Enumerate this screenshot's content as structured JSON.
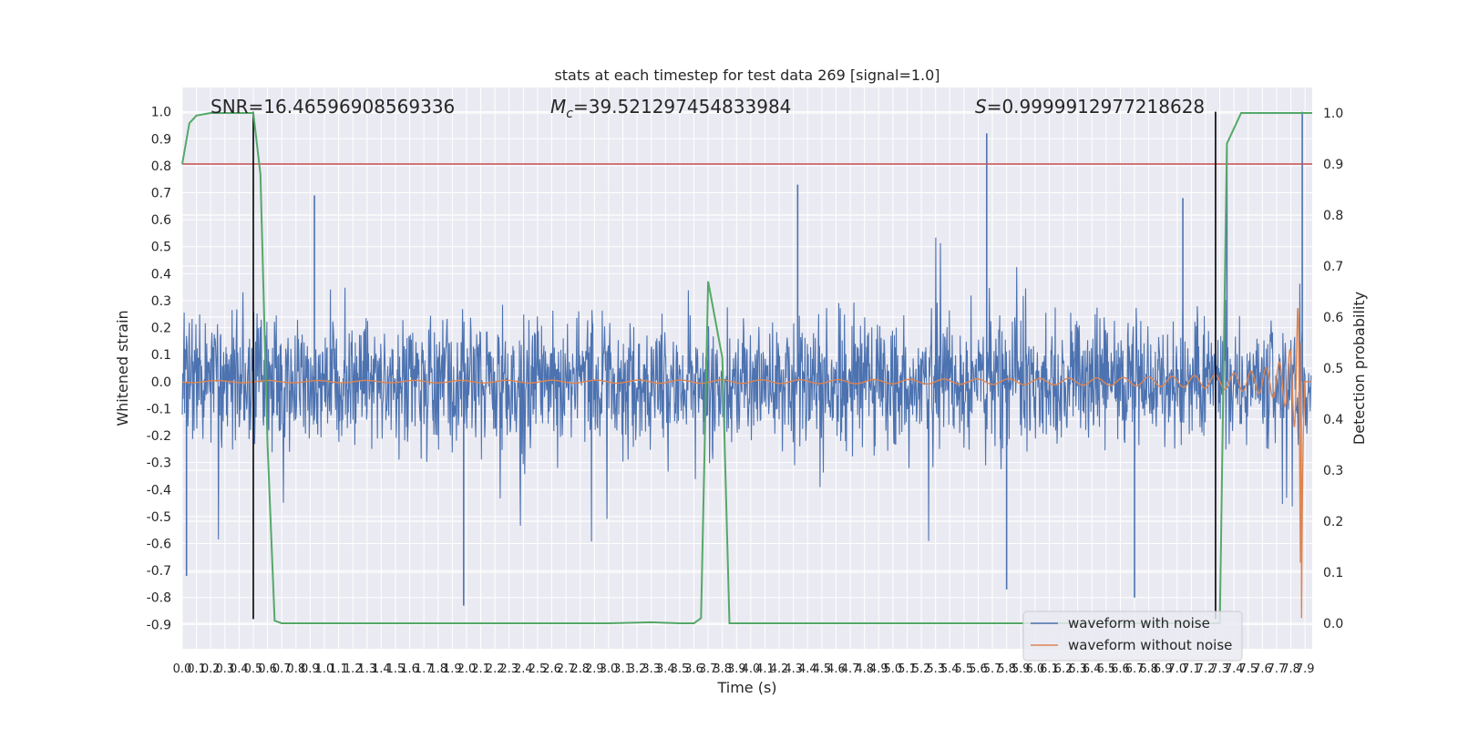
{
  "chart_data": {
    "type": "line",
    "title": "stats at each timestep for test data 269 [signal=1.0]",
    "xlabel": "Time (s)",
    "ylabel": "Whitened strain",
    "y2label": "Detection probability",
    "xlim": [
      0.0,
      7.95
    ],
    "ylim": [
      -0.99,
      1.09
    ],
    "y2lim": [
      -0.05,
      1.05
    ],
    "x_ticks": [
      "0.0",
      "0.1",
      "0.2",
      "0.3",
      "0.4",
      "0.5",
      "0.6",
      "0.7",
      "0.8",
      "0.9",
      "1.0",
      "1.1",
      "1.2",
      "1.3",
      "1.4",
      "1.5",
      "1.6",
      "1.7",
      "1.8",
      "1.9",
      "2.0",
      "2.1",
      "2.2",
      "2.3",
      "2.4",
      "2.5",
      "2.6",
      "2.7",
      "2.8",
      "2.9",
      "3.0",
      "3.1",
      "3.2",
      "3.3",
      "3.4",
      "3.5",
      "3.6",
      "3.7",
      "3.8",
      "3.9",
      "4.0",
      "4.1",
      "4.2",
      "4.3",
      "4.4",
      "4.5",
      "4.6",
      "4.7",
      "4.8",
      "4.9",
      "5.0",
      "5.1",
      "5.2",
      "5.3",
      "5.4",
      "5.5",
      "5.6",
      "5.7",
      "5.8",
      "5.9",
      "6.0",
      "6.1",
      "6.2",
      "6.3",
      "6.4",
      "6.5",
      "6.6",
      "6.7",
      "6.8",
      "6.9",
      "7.0",
      "7.1",
      "7.2",
      "7.3",
      "7.4",
      "7.5",
      "7.6",
      "7.7",
      "7.8",
      "7.9"
    ],
    "y_ticks": [
      "1.0",
      "0.9",
      "0.8",
      "0.7",
      "0.6",
      "0.5",
      "0.4",
      "0.3",
      "0.2",
      "0.1",
      "0.0",
      "-0.1",
      "-0.2",
      "-0.3",
      "-0.4",
      "-0.5",
      "-0.6",
      "-0.7",
      "-0.8",
      "-0.9"
    ],
    "y2_ticks": [
      "1.0",
      "0.9",
      "0.8",
      "0.7",
      "0.6",
      "0.5",
      "0.4",
      "0.3",
      "0.2",
      "0.1",
      "0.0"
    ],
    "annotations": {
      "snr": "SNR=16.46596908569336",
      "mc_symbol": "M",
      "mc_sub": "c",
      "mc_value": "=39.521297454833984",
      "s_symbol": "S",
      "s_value": "=0.9999912977218628"
    },
    "series": [
      {
        "name": "waveform with noise",
        "color": "#4c72b0",
        "axis": "left",
        "approx_range": [
          -0.83,
          1.0
        ],
        "typical_envelope": [
          -0.4,
          0.42
        ],
        "notable_peaks": [
          {
            "x": 0.03,
            "y": -0.72
          },
          {
            "x": 0.93,
            "y": 0.69
          },
          {
            "x": 1.98,
            "y": -0.83
          },
          {
            "x": 4.33,
            "y": 0.73
          },
          {
            "x": 5.66,
            "y": 0.92
          },
          {
            "x": 5.8,
            "y": -0.77
          },
          {
            "x": 6.7,
            "y": -0.8
          },
          {
            "x": 7.04,
            "y": 0.68
          },
          {
            "x": 7.35,
            "y": 0.87
          },
          {
            "x": 7.88,
            "y": 1.0
          }
        ]
      },
      {
        "name": "waveform without noise",
        "color": "#dd8452",
        "axis": "left",
        "description_points": [
          {
            "x": 4.0,
            "y": 0.0
          },
          {
            "x": 5.0,
            "y": 0.005
          },
          {
            "x": 6.0,
            "y": 0.01
          },
          {
            "x": 7.0,
            "y": 0.03
          },
          {
            "x": 7.5,
            "y": 0.08
          },
          {
            "x": 7.7,
            "y": 0.15
          },
          {
            "x": 7.8,
            "y": 0.3
          },
          {
            "x": 7.86,
            "y": 0.7
          },
          {
            "x": 7.88,
            "y": -0.88
          },
          {
            "x": 7.9,
            "y": 0.0
          }
        ]
      },
      {
        "name": "detection probability",
        "color": "#55a868",
        "axis": "right",
        "x": [
          0.0,
          0.05,
          0.1,
          0.2,
          0.3,
          0.4,
          0.5,
          0.55,
          0.6,
          0.65,
          0.7,
          1.0,
          2.0,
          3.0,
          3.3,
          3.5,
          3.6,
          3.65,
          3.7,
          3.8,
          3.85,
          3.9,
          4.0,
          5.0,
          6.0,
          7.0,
          7.25,
          7.3,
          7.35,
          7.45,
          7.5,
          7.95
        ],
        "y": [
          0.9,
          0.98,
          0.995,
          1.0,
          1.0,
          1.0,
          1.0,
          0.88,
          0.35,
          0.005,
          0.0,
          0.0,
          0.0,
          0.0,
          0.002,
          0.0,
          0.0,
          0.01,
          0.67,
          0.52,
          0.0,
          0.0,
          0.0,
          0.0,
          0.0,
          0.0,
          0.0,
          0.0,
          0.94,
          1.0,
          1.0,
          1.0
        ]
      }
    ],
    "reference_lines": {
      "threshold_color": "#c44e52",
      "threshold_y2": 0.9,
      "vertical_color": "#000000",
      "vertical_x": [
        0.5,
        7.27
      ],
      "vertical_y_range": [
        -0.88,
        1.0
      ]
    },
    "legend": {
      "placement": "lower-right",
      "entries": [
        "waveform with noise",
        "waveform without noise"
      ]
    },
    "colors": {
      "axes_background": "#eaeaf2",
      "grid": "#ffffff"
    }
  }
}
